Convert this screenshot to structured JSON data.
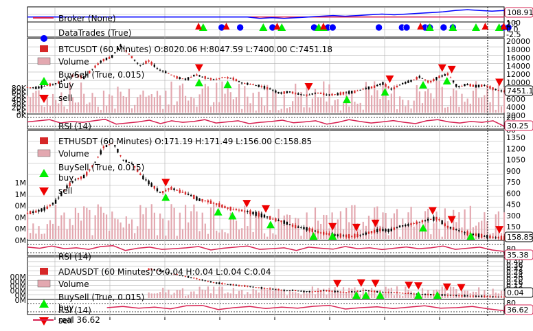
{
  "colors": {
    "candle_up": "#000000",
    "candle_down": "#d62728",
    "volume": "#e3a8b0",
    "buy": "#00ee00",
    "sell": "#ee0000",
    "rsi": "#d62050",
    "broker": "#d62050",
    "broker_value": "#0000ff",
    "order_blue": "#0000ff",
    "grid": "#b0b0b0"
  },
  "chart_data": [
    {
      "type": "line",
      "panel": "broker",
      "legend": "Broker (None)",
      "last_value_tag": "108.91",
      "y_ticks": [
        "100"
      ],
      "series": [
        {
          "name": "cash",
          "values": [
            100,
            100,
            100,
            100,
            100,
            100,
            100,
            100,
            100,
            100,
            100,
            100,
            100,
            100,
            100,
            100,
            100,
            100,
            100,
            100,
            100,
            100,
            100,
            100,
            100,
            100,
            100,
            100,
            100,
            100,
            100,
            100,
            100,
            100,
            100,
            100,
            100,
            100,
            100,
            100
          ]
        },
        {
          "name": "value",
          "values": [
            100,
            100,
            100,
            100,
            100,
            100,
            100,
            100,
            100,
            100,
            100,
            100,
            100,
            100,
            100,
            100,
            100,
            100,
            100,
            98,
            99,
            98,
            99,
            100,
            101,
            102,
            101,
            102,
            103,
            104,
            103,
            104,
            105,
            106,
            107,
            109,
            110,
            109,
            108,
            108.91
          ]
        }
      ]
    },
    {
      "type": "scatter",
      "panel": "trades",
      "legend": "DataTrades (True)",
      "y_ticks": [
        "2.5",
        "0.0",
        "-2.5"
      ],
      "blue_circles_x": [
        0.42,
        0.46,
        0.53,
        0.62,
        0.65,
        0.66,
        0.76,
        0.81,
        0.82,
        0.86,
        0.87,
        0.9,
        0.92,
        1.03,
        1.04
      ],
      "green_buy_x": [
        0.38,
        0.51,
        0.55,
        0.63,
        0.64,
        0.87,
        0.92,
        0.97,
        1.02
      ],
      "red_sell_x": [
        0.37,
        0.43,
        0.54,
        0.64,
        0.85,
        0.99,
        1.03
      ]
    },
    {
      "type": "candlestick",
      "panel": "btc",
      "legend": [
        "BTCUSDT (60 Minutes) O:8020.06 H:8047.59 L:7400.00 C:7451.18",
        "Volume",
        "BuySell (True, 0.015)",
        "buy",
        "sell"
      ],
      "last_value_tag": "7451.18",
      "y_ticks": [
        "20000",
        "18000",
        "16000",
        "14000",
        "12000",
        "10000",
        "8000",
        "6000",
        "4000",
        "2000"
      ],
      "volume_ticks": [
        "80K",
        "60K",
        "50K",
        "40K",
        "30K",
        "20K",
        "5K",
        "0K"
      ],
      "series": [
        {
          "name": "close",
          "values": [
            8600,
            8400,
            9000,
            9500,
            10500,
            11800,
            11000,
            13400,
            15500,
            16400,
            19500,
            16800,
            14200,
            15400,
            13200,
            12300,
            11100,
            10600,
            11800,
            11100,
            10500,
            11200,
            10800,
            9600,
            9300,
            8800,
            8100,
            7000,
            7400,
            6800,
            6500,
            7200,
            6600,
            6700,
            7100,
            7400,
            8200,
            8600,
            9600,
            8000,
            9400,
            10200,
            11300,
            9800,
            11200,
            12000,
            8600,
            9300,
            8800,
            9100,
            8000,
            7451
          ]
        }
      ],
      "buy_markers": [
        [
          0.36,
          0
        ],
        [
          0.42,
          0
        ],
        [
          0.67,
          0
        ],
        [
          0.75,
          0
        ],
        [
          0.83,
          0
        ],
        [
          0.88,
          0
        ]
      ],
      "sell_markers": [
        [
          0.36,
          0
        ],
        [
          0.59,
          0
        ],
        [
          0.76,
          0
        ],
        [
          0.87,
          0
        ],
        [
          0.89,
          0
        ],
        [
          0.99,
          0
        ]
      ]
    },
    {
      "type": "line",
      "panel": "btc_rsi",
      "legend": "RSI (14)",
      "last_value_tag": "30.25",
      "y_ticks": [
        "20",
        "80"
      ],
      "series": [
        {
          "name": "rsi",
          "values": [
            50,
            55,
            60,
            45,
            52,
            48,
            55,
            62,
            40,
            45,
            50,
            58,
            42,
            55,
            48,
            52,
            60,
            45,
            50,
            55,
            42,
            48,
            52,
            58,
            46,
            50,
            55,
            40,
            48,
            60,
            52,
            45,
            50,
            56,
            48,
            42,
            55,
            60,
            50,
            45,
            52,
            48,
            55,
            30.25
          ]
        }
      ]
    },
    {
      "type": "candlestick",
      "panel": "eth",
      "legend": [
        "ETHUSDT (60 Minutes) O:171.19 H:171.49 L:156.00 C:158.85",
        "Volume",
        "BuySell (True, 0.015)",
        "buy",
        "sell"
      ],
      "last_value_tag": "158.85",
      "y_ticks": [
        "1350",
        "1200",
        "1050",
        "900",
        "750",
        "600",
        "450",
        "300",
        "150"
      ],
      "volume_ticks": [
        "1M",
        "1M",
        "0M",
        "0M",
        "0M",
        "0M"
      ],
      "series": [
        {
          "name": "close",
          "values": [
            460,
            480,
            520,
            600,
            760,
            860,
            900,
            1050,
            1250,
            1300,
            1100,
            1050,
            900,
            800,
            700,
            760,
            720,
            680,
            620,
            600,
            560,
            520,
            500,
            480,
            450,
            420,
            380,
            350,
            300,
            280,
            250,
            220,
            200,
            190,
            180,
            200,
            230,
            260,
            250,
            300,
            320,
            350,
            380,
            400,
            300,
            260,
            220,
            200,
            180,
            170,
            158.85
          ]
        }
      ],
      "buy_markers": [
        [
          0.29,
          0
        ],
        [
          0.4,
          0
        ],
        [
          0.43,
          0
        ],
        [
          0.51,
          0
        ],
        [
          0.6,
          0
        ],
        [
          0.64,
          0
        ],
        [
          0.83,
          0
        ],
        [
          0.93,
          0
        ]
      ],
      "sell_markers": [
        [
          0.29,
          0
        ],
        [
          0.46,
          0
        ],
        [
          0.5,
          0
        ],
        [
          0.64,
          0
        ],
        [
          0.69,
          0
        ],
        [
          0.73,
          0
        ],
        [
          0.85,
          0
        ],
        [
          0.89,
          0
        ],
        [
          0.99,
          0
        ]
      ]
    },
    {
      "type": "line",
      "panel": "eth_rsi",
      "legend": "RSI (14)",
      "last_value_tag": "35.38",
      "y_ticks": [
        "80"
      ],
      "series": [
        {
          "name": "rsi",
          "values": [
            55,
            50,
            60,
            48,
            52,
            45,
            58,
            62,
            40,
            50,
            55,
            45,
            48,
            52,
            58,
            42,
            50,
            55,
            60,
            45,
            48,
            52,
            40,
            55,
            50,
            46,
            58,
            48,
            52,
            44,
            50,
            56,
            48,
            52,
            60,
            45,
            50,
            55,
            42,
            35.38
          ]
        }
      ]
    },
    {
      "type": "candlestick",
      "panel": "ada",
      "legend": [
        "ADAUSDT (60 Minutes) O:0.04 H:0.04 L:0.04 C:0.04",
        "Volume",
        "BuySell (True, 0.015)",
        "buy",
        "sell"
      ],
      "last_value_tag": "0.04",
      "y_ticks": [
        "0.40",
        "0.36",
        "0.32",
        "0.28",
        "0.24",
        "0.20",
        "0.16",
        "0.12",
        "0.08",
        "0.04"
      ],
      "volume_ticks": [
        "00M",
        "00M",
        "00M",
        "00M",
        "0M",
        "0M"
      ],
      "series": [
        {
          "name": "close",
          "values": [
            null,
            null,
            null,
            null,
            null,
            null,
            null,
            null,
            null,
            null,
            null,
            null,
            0.3,
            0.29,
            0.27,
            0.25,
            0.23,
            0.21,
            0.19,
            0.17,
            0.16,
            0.15,
            0.14,
            0.13,
            0.12,
            0.11,
            0.1,
            0.1,
            0.09,
            0.09,
            0.1,
            0.09,
            0.085,
            0.09,
            0.1,
            0.09,
            0.085,
            0.08,
            0.075,
            0.07,
            0.065,
            0.06,
            0.058,
            0.055,
            0.05,
            0.048,
            0.045,
            0.042,
            0.04
          ]
        }
      ],
      "buy_markers": [
        [
          0.69,
          0
        ],
        [
          0.71,
          0
        ],
        [
          0.74,
          0
        ],
        [
          0.82,
          0
        ],
        [
          0.86,
          0
        ]
      ],
      "sell_markers": [
        [
          0.65,
          0
        ],
        [
          0.7,
          0
        ],
        [
          0.73,
          0
        ],
        [
          0.8,
          0
        ],
        [
          0.82,
          0
        ],
        [
          0.88,
          0
        ],
        [
          0.91,
          0
        ]
      ]
    },
    {
      "type": "line",
      "panel": "ada_rsi",
      "legend": [
        "RSI (14)",
        "real 36.62"
      ],
      "last_value_tag": "36.62",
      "y_ticks": [
        "80"
      ],
      "series": [
        {
          "name": "rsi",
          "values": [
            null,
            null,
            null,
            null,
            null,
            50,
            55,
            48,
            52,
            45,
            58,
            60,
            42,
            50,
            55,
            46,
            52,
            48,
            56,
            60,
            44,
            50,
            54,
            46,
            52,
            58,
            48,
            50,
            55,
            45,
            36.62
          ]
        }
      ]
    }
  ]
}
